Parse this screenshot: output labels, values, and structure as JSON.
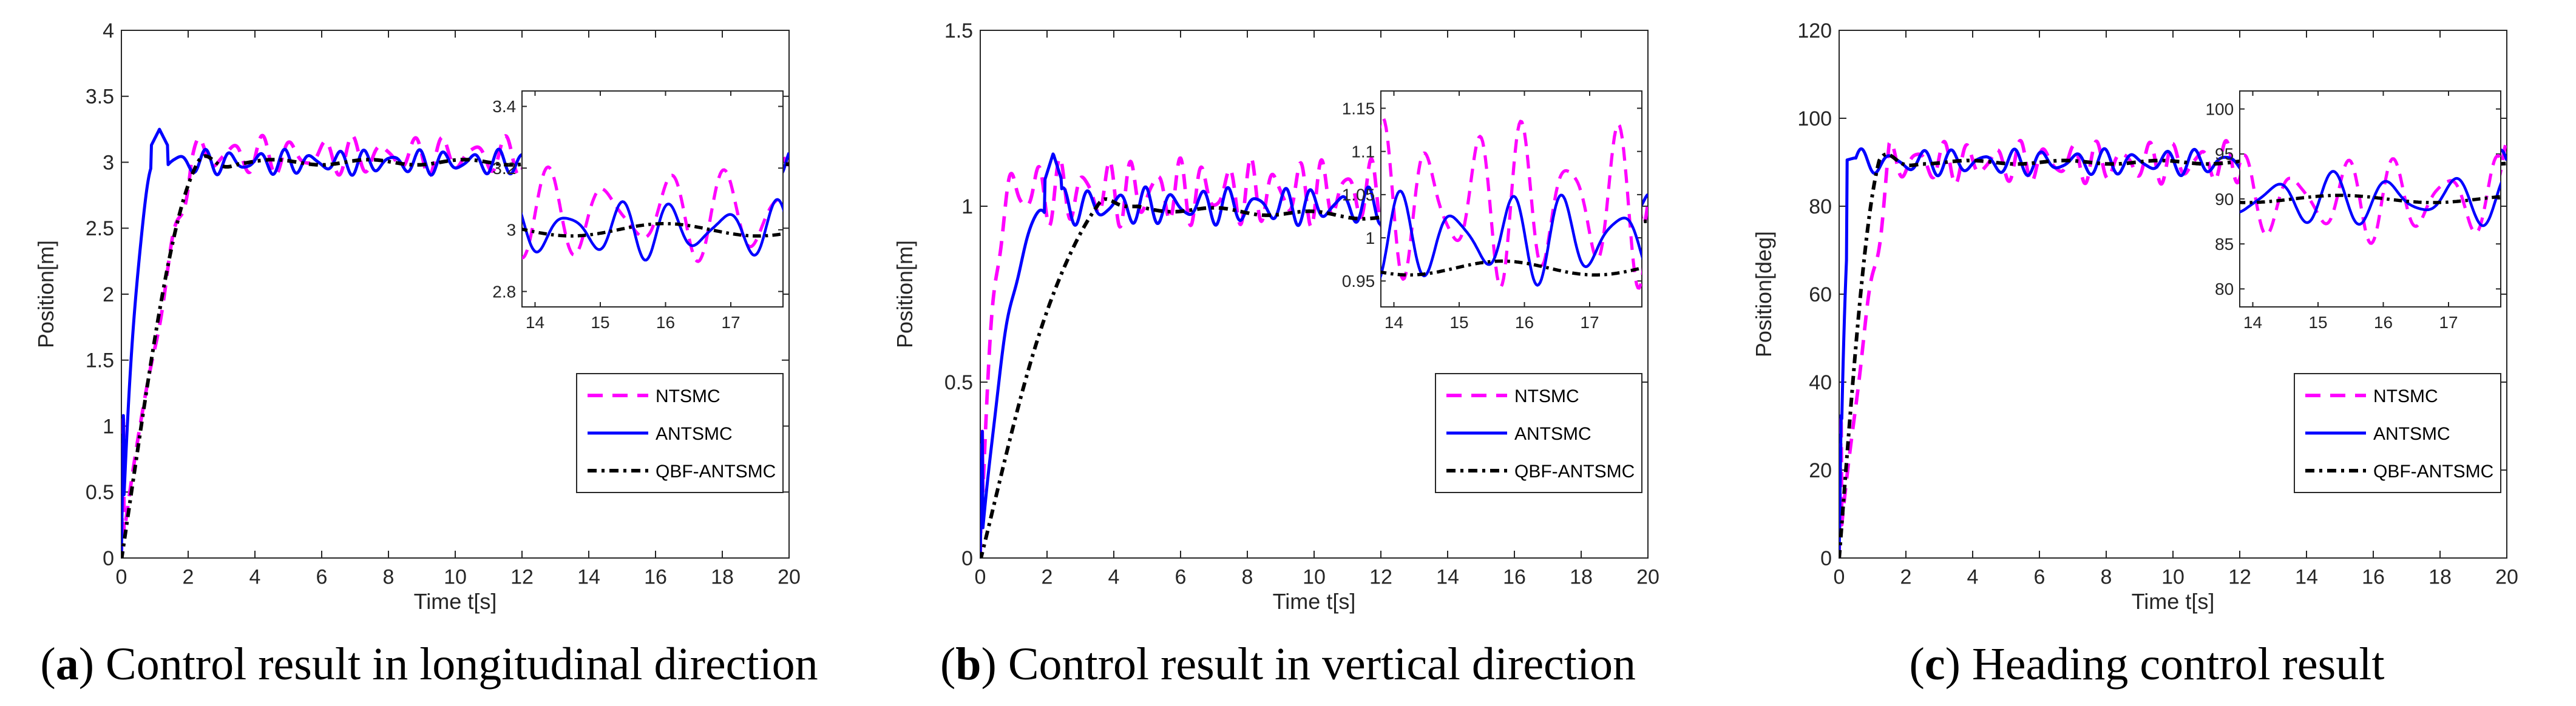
{
  "colors": {
    "ntsmc": "#ff00ff",
    "antsmc": "#0000ff",
    "qbf": "#000000",
    "axis": "#262626"
  },
  "chart_data": [
    {
      "type": "line",
      "panel_letter": "a",
      "caption": "Control result in longitudinal direction",
      "xlabel": "Time t[s]",
      "ylabel": "Position[m]",
      "xlim": [
        0,
        20
      ],
      "ylim": [
        0,
        4
      ],
      "xticks": [
        0,
        2,
        4,
        6,
        8,
        10,
        12,
        14,
        16,
        18,
        20
      ],
      "yticks": [
        0,
        0.5,
        1,
        1.5,
        2,
        2.5,
        3,
        3.5,
        4
      ],
      "ytick_labels": [
        "0",
        "0.5",
        "1",
        "1.5",
        "2",
        "2.5",
        "3",
        "3.5",
        "4"
      ],
      "target": 3,
      "legend": [
        "NTSMC",
        "ANTSMC",
        "QBF-ANTSMC"
      ],
      "legend_position": "lower-right",
      "series_params": {
        "ntsmc": {
          "t_ss": 2.1,
          "amp": 0.14,
          "freq": 1.1,
          "bias": 0.05,
          "ramp": "slow"
        },
        "antsmc": {
          "t_ss": 1.2,
          "amp": 0.09,
          "freq": 1.25,
          "bias": 0.0,
          "peak": 3.25
        },
        "qbf": {
          "t_ss": 2.3,
          "amp": 0.02,
          "drift": 0.0
        }
      },
      "inset": {
        "xlim": [
          13.8,
          17.8
        ],
        "ylim": [
          2.75,
          3.45
        ],
        "xticks": [
          14,
          15,
          16,
          17
        ],
        "yticks": [
          2.8,
          3,
          3.2,
          3.4
        ],
        "ytick_labels": [
          "2.8",
          "3",
          "3.2",
          "3.4"
        ],
        "position": "top-right"
      }
    },
    {
      "type": "line",
      "panel_letter": "b",
      "caption": "Control result in vertical direction",
      "xlabel": "Time t[s]",
      "ylabel": "Position[m]",
      "xlim": [
        0,
        20
      ],
      "ylim": [
        0,
        1.5
      ],
      "xticks": [
        0,
        2,
        4,
        6,
        8,
        10,
        12,
        14,
        16,
        18,
        20
      ],
      "yticks": [
        0,
        0.5,
        1,
        1.5
      ],
      "ytick_labels": [
        "0",
        "0.5",
        "1",
        "1.5"
      ],
      "target": 1,
      "legend": [
        "NTSMC",
        "ANTSMC",
        "QBF-ANTSMC"
      ],
      "legend_position": "lower-right",
      "series_params": {
        "ntsmc": {
          "t_ss": 1.0,
          "amp": 0.09,
          "freq": 1.4,
          "bias": 0.04,
          "ramp": "fast"
        },
        "antsmc": {
          "t_ss": 2.3,
          "amp": 0.05,
          "freq": 1.2,
          "bias": 0.0,
          "peak": 1.15
        },
        "qbf": {
          "t_ss": 3.5,
          "amp": 0.008,
          "drift": -0.035
        }
      },
      "inset": {
        "xlim": [
          13.8,
          17.8
        ],
        "ylim": [
          0.92,
          1.17
        ],
        "xticks": [
          14,
          15,
          16,
          17
        ],
        "yticks": [
          0.95,
          1,
          1.05,
          1.1,
          1.15
        ],
        "ytick_labels": [
          "0.95",
          "1",
          "1.05",
          "1.1",
          "1.15"
        ],
        "position": "top-right"
      }
    },
    {
      "type": "line",
      "panel_letter": "c",
      "caption": "Heading control result",
      "xlabel": "Time t[s]",
      "ylabel": "Position[deg]",
      "xlim": [
        0,
        20
      ],
      "ylim": [
        0,
        120
      ],
      "xticks": [
        0,
        2,
        4,
        6,
        8,
        10,
        12,
        14,
        16,
        18,
        20
      ],
      "yticks": [
        0,
        20,
        40,
        60,
        80,
        100,
        120
      ],
      "ytick_labels": [
        "0",
        "20",
        "40",
        "60",
        "80",
        "100",
        "120"
      ],
      "target": 90,
      "legend": [
        "NTSMC",
        "ANTSMC",
        "QBF-ANTSMC"
      ],
      "legend_position": "lower-right",
      "series_params": {
        "ntsmc": {
          "t_ss": 1.5,
          "amp": 4.5,
          "freq": 1.3,
          "bias": 0.0,
          "ramp": "slow"
        },
        "antsmc": {
          "t_ss": 0.5,
          "amp": 2.8,
          "freq": 1.1,
          "bias": 0.0,
          "peak": 91
        },
        "qbf": {
          "t_ss": 1.2,
          "amp": 0.4,
          "drift": 0.0
        }
      },
      "inset": {
        "xlim": [
          13.8,
          17.8
        ],
        "ylim": [
          78,
          102
        ],
        "xticks": [
          14,
          15,
          16,
          17
        ],
        "yticks": [
          80,
          85,
          90,
          95,
          100
        ],
        "ytick_labels": [
          "80",
          "85",
          "90",
          "95",
          "100"
        ],
        "position": "top-right"
      }
    }
  ]
}
